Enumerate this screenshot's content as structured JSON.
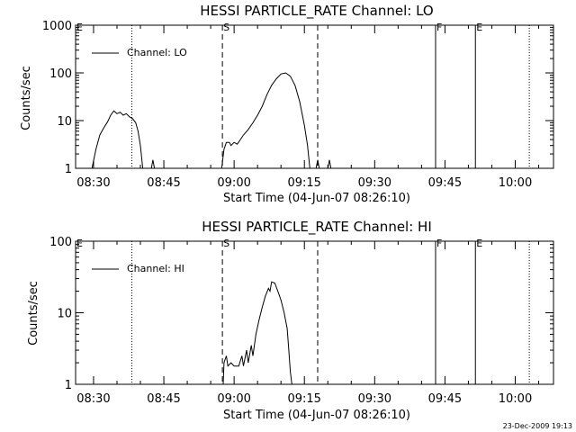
{
  "footer": {
    "timestamp": "23-Dec-2009 19:13"
  },
  "chart_data": [
    {
      "type": "line",
      "title": "HESSI PARTICLE_RATE Channel: LO",
      "xlabel": "Start Time (04-Jun-07 08:26:10)",
      "ylabel": "Counts/sec",
      "yscale": "log",
      "ylim": [
        1,
        1000
      ],
      "yticks": [
        {
          "value": 1,
          "label": "1"
        },
        {
          "value": 10,
          "label": "10"
        },
        {
          "value": 100,
          "label": "100"
        },
        {
          "value": 1000,
          "label": "1000"
        }
      ],
      "xticks": [
        {
          "value": "08:30",
          "label": "08:30"
        },
        {
          "value": "08:45",
          "label": "08:45"
        },
        {
          "value": "09:00",
          "label": "09:00"
        },
        {
          "value": "09:15",
          "label": "09:15"
        },
        {
          "value": "09:30",
          "label": "09:30"
        },
        {
          "value": "09:45",
          "label": "09:45"
        },
        {
          "value": "10:00",
          "label": "10:00"
        }
      ],
      "xlim": [
        "08:26:10",
        "10:08:10"
      ],
      "legend": {
        "label": "Channel: LO",
        "position": "top-left"
      },
      "markers": [
        {
          "label": "E",
          "time": "08:26:10",
          "style": "solid"
        },
        {
          "label": "",
          "time": "08:38:10",
          "style": "dotted"
        },
        {
          "label": "S",
          "time": "08:57:30",
          "style": "dashed"
        },
        {
          "label": "",
          "time": "09:17:50",
          "style": "dashed"
        },
        {
          "label": "F",
          "time": "09:43:00",
          "style": "solid"
        },
        {
          "label": "E",
          "time": "09:51:30",
          "style": "solid"
        },
        {
          "label": "",
          "time": "10:03:00",
          "style": "dotted"
        }
      ],
      "series": [
        {
          "segments": [
            [
              [
                "08:29:40",
                1
              ],
              [
                "08:30:30",
                2.5
              ],
              [
                "08:31:20",
                5
              ],
              [
                "08:32:10",
                7
              ],
              [
                "08:33:00",
                9.5
              ],
              [
                "08:33:40",
                13
              ],
              [
                "08:34:20",
                16
              ],
              [
                "08:35:00",
                14
              ],
              [
                "08:35:40",
                15
              ],
              [
                "08:36:20",
                13
              ],
              [
                "08:37:00",
                14
              ],
              [
                "08:37:40",
                12
              ],
              [
                "08:38:20",
                11
              ],
              [
                "08:39:00",
                9
              ],
              [
                "08:39:30",
                6
              ],
              [
                "08:40:00",
                3
              ],
              [
                "08:40:30",
                1
              ]
            ],
            [
              [
                "08:42:20",
                1
              ],
              [
                "08:42:40",
                1.5
              ],
              [
                "08:43:00",
                1
              ]
            ],
            [
              [
                "08:57:20",
                1
              ],
              [
                "08:57:50",
                2.5
              ],
              [
                "08:58:20",
                3.5
              ],
              [
                "08:59:00",
                3.5
              ],
              [
                "08:59:20",
                3
              ],
              [
                "09:00:00",
                3.5
              ],
              [
                "09:00:40",
                3.2
              ],
              [
                "09:01:20",
                4
              ],
              [
                "09:02:00",
                5
              ],
              [
                "09:03:00",
                6.5
              ],
              [
                "09:04:00",
                9
              ],
              [
                "09:05:00",
                13
              ],
              [
                "09:06:00",
                20
              ],
              [
                "09:07:00",
                35
              ],
              [
                "09:08:00",
                55
              ],
              [
                "09:09:00",
                75
              ],
              [
                "09:10:00",
                95
              ],
              [
                "09:11:00",
                100
              ],
              [
                "09:12:00",
                85
              ],
              [
                "09:13:00",
                55
              ],
              [
                "09:14:00",
                25
              ],
              [
                "09:15:00",
                8
              ],
              [
                "09:15:40",
                3
              ],
              [
                "09:16:10",
                1
              ]
            ],
            [
              [
                "09:17:30",
                1
              ],
              [
                "09:17:50",
                1.5
              ],
              [
                "09:18:10",
                1
              ]
            ],
            [
              [
                "09:20:00",
                1
              ],
              [
                "09:20:20",
                1.5
              ],
              [
                "09:20:40",
                1
              ]
            ]
          ]
        }
      ]
    },
    {
      "type": "line",
      "title": "HESSI PARTICLE_RATE Channel: HI",
      "xlabel": "Start Time (04-Jun-07 08:26:10)",
      "ylabel": "Counts/sec",
      "yscale": "log",
      "ylim": [
        1,
        100
      ],
      "yticks": [
        {
          "value": 1,
          "label": "1"
        },
        {
          "value": 10,
          "label": "10"
        },
        {
          "value": 100,
          "label": "100"
        }
      ],
      "xticks": [
        {
          "value": "08:30",
          "label": "08:30"
        },
        {
          "value": "08:45",
          "label": "08:45"
        },
        {
          "value": "09:00",
          "label": "09:00"
        },
        {
          "value": "09:15",
          "label": "09:15"
        },
        {
          "value": "09:30",
          "label": "09:30"
        },
        {
          "value": "09:45",
          "label": "09:45"
        },
        {
          "value": "10:00",
          "label": "10:00"
        }
      ],
      "xlim": [
        "08:26:10",
        "10:08:10"
      ],
      "legend": {
        "label": "Channel: HI",
        "position": "top-left"
      },
      "markers": [
        {
          "label": "E",
          "time": "08:26:10",
          "style": "solid"
        },
        {
          "label": "",
          "time": "08:38:10",
          "style": "dotted"
        },
        {
          "label": "S",
          "time": "08:57:30",
          "style": "dashed"
        },
        {
          "label": "",
          "time": "09:17:50",
          "style": "dashed"
        },
        {
          "label": "F",
          "time": "09:43:00",
          "style": "solid"
        },
        {
          "label": "E",
          "time": "09:51:30",
          "style": "solid"
        },
        {
          "label": "",
          "time": "10:03:00",
          "style": "dotted"
        }
      ],
      "series": [
        {
          "segments": [
            [
              [
                "08:57:40",
                1
              ],
              [
                "08:57:50",
                2
              ],
              [
                "08:58:20",
                2.5
              ],
              [
                "08:58:40",
                1.8
              ],
              [
                "08:59:20",
                2
              ],
              [
                "09:00:00",
                1.8
              ],
              [
                "09:01:00",
                1.8
              ],
              [
                "09:01:40",
                2.5
              ],
              [
                "09:02:00",
                1.8
              ],
              [
                "09:02:40",
                3
              ],
              [
                "09:03:00",
                2
              ],
              [
                "09:03:40",
                3.5
              ],
              [
                "09:04:00",
                2.5
              ],
              [
                "09:04:40",
                5
              ],
              [
                "09:05:20",
                8
              ],
              [
                "09:06:00",
                12
              ],
              [
                "09:06:40",
                17
              ],
              [
                "09:07:20",
                22
              ],
              [
                "09:07:40",
                20
              ],
              [
                "09:08:00",
                27
              ],
              [
                "09:08:40",
                26
              ],
              [
                "09:09:20",
                20
              ],
              [
                "09:10:00",
                15
              ],
              [
                "09:10:40",
                10
              ],
              [
                "09:11:20",
                6
              ],
              [
                "09:11:40",
                3
              ],
              [
                "09:12:00",
                1.5
              ],
              [
                "09:12:20",
                1
              ]
            ]
          ]
        }
      ]
    }
  ]
}
